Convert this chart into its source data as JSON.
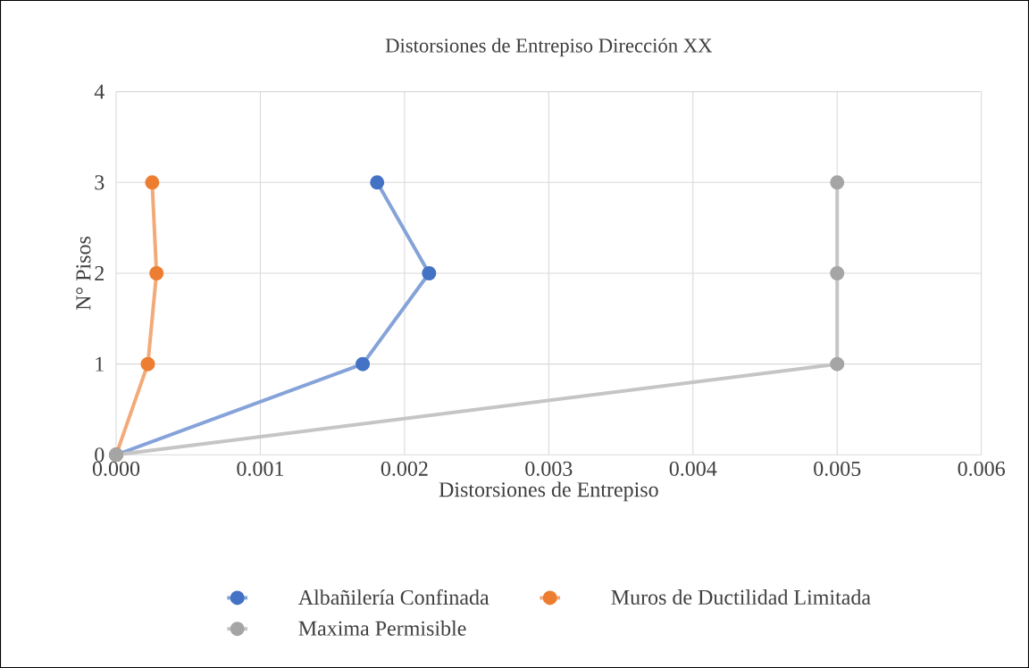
{
  "chart_data": {
    "type": "line",
    "title": "Distorsiones de Entrepiso Dirección XX",
    "xlabel": "Distorsiones de Entrepiso",
    "ylabel": "N° Pisos",
    "xlim": [
      0,
      0.006
    ],
    "ylim": [
      0,
      4
    ],
    "xticks": [
      {
        "value": 0,
        "label": "0.000"
      },
      {
        "value": 0.001,
        "label": "0.001"
      },
      {
        "value": 0.002,
        "label": "0.002"
      },
      {
        "value": 0.003,
        "label": "0.003"
      },
      {
        "value": 0.004,
        "label": "0.004"
      },
      {
        "value": 0.005,
        "label": "0.005"
      },
      {
        "value": 0.006,
        "label": "0.006"
      }
    ],
    "yticks": [
      0,
      1,
      2,
      3,
      4
    ],
    "grid": true,
    "legend": "bottom",
    "marker": "circle",
    "line_style": "solid",
    "series": [
      {
        "name": "Albañilería Confinada",
        "color": "#4472c4",
        "x": [
          0,
          0.00171,
          0.00217,
          0.00181
        ],
        "values": [
          0,
          1,
          2,
          3
        ]
      },
      {
        "name": "Muros de Ductilidad Limitada",
        "color": "#ed7d31",
        "x": [
          0,
          0.00022,
          0.00028,
          0.00025
        ],
        "values": [
          0,
          1,
          2,
          3
        ]
      },
      {
        "name": "Maxima Permisible",
        "color": "#a5a5a5",
        "x": [
          0,
          0.005,
          0.005,
          0.005
        ],
        "values": [
          0,
          1,
          2,
          3
        ]
      }
    ]
  }
}
